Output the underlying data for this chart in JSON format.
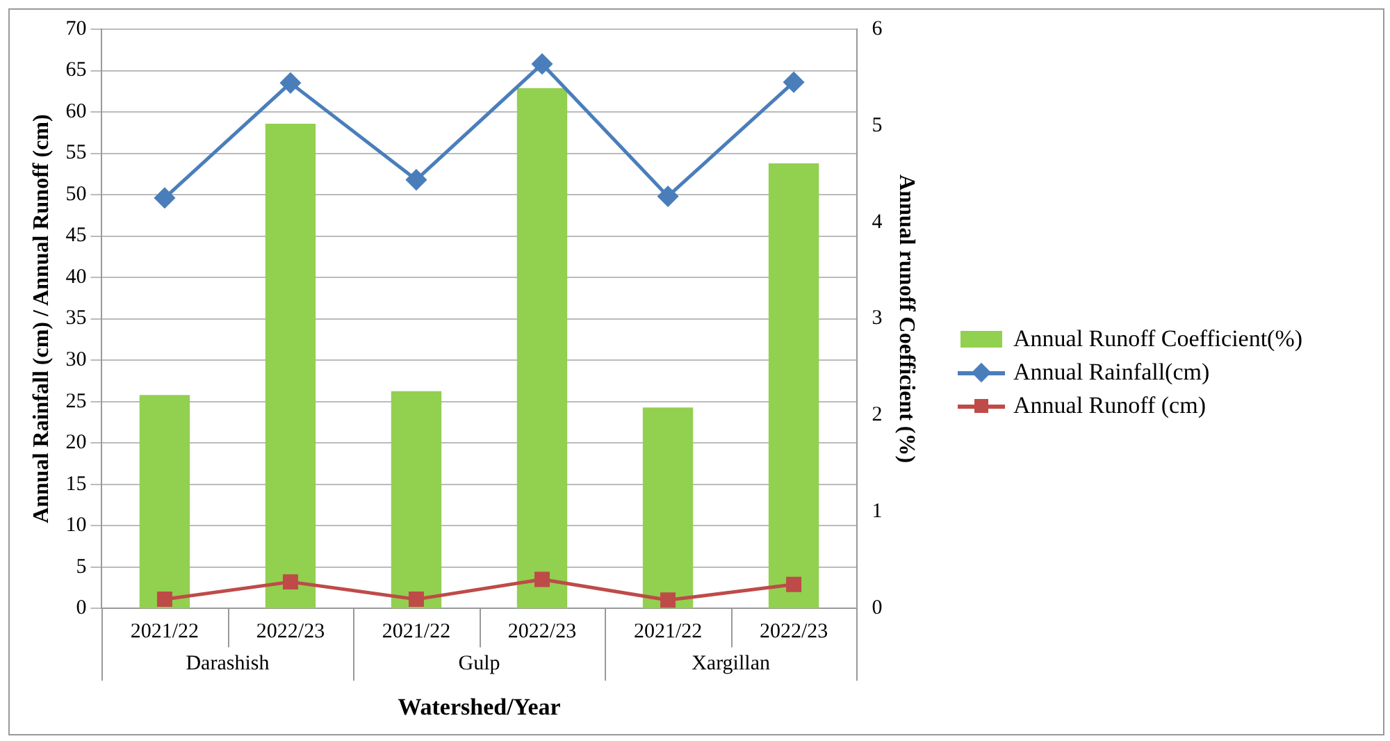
{
  "chart_data": {
    "type": "bar",
    "xlabel": "Watershed/Year",
    "ylabel": "Annual Rainfall (cm) / Annual Runoff (cm)",
    "y2label": "Annual runoff Coefficient (%)",
    "categories": [
      "2021/22",
      "2022/23",
      "2021/22",
      "2022/23",
      "2021/22",
      "2022/23"
    ],
    "annotations": [
      "Darashish",
      "Gulp",
      "Xargillan"
    ],
    "series": [
      {
        "name": "Annual Runoff Coefficient(%)",
        "axis": "y2",
        "color": "#92d050",
        "values": [
          2.21,
          5.02,
          2.25,
          5.39,
          2.08,
          4.61
        ]
      },
      {
        "name": "Annual Rainfall(cm)",
        "type": "line",
        "marker": "diamond",
        "color": "#4a7ebb",
        "values": [
          49.6,
          63.5,
          51.8,
          65.8,
          49.8,
          63.6
        ]
      },
      {
        "name": "Annual Runoff (cm)",
        "type": "line",
        "marker": "square",
        "color": "#be4b48",
        "values": [
          1.1,
          3.2,
          1.1,
          3.5,
          1.0,
          2.9
        ]
      }
    ],
    "ylim": [
      0,
      70
    ],
    "yticks": [
      0,
      5,
      10,
      15,
      20,
      25,
      30,
      35,
      40,
      45,
      50,
      55,
      60,
      65,
      70
    ],
    "y2lim": [
      0,
      6
    ],
    "y2ticks": [
      0,
      1,
      2,
      3,
      4,
      5,
      6
    ],
    "grid": "y",
    "legend": "right"
  }
}
